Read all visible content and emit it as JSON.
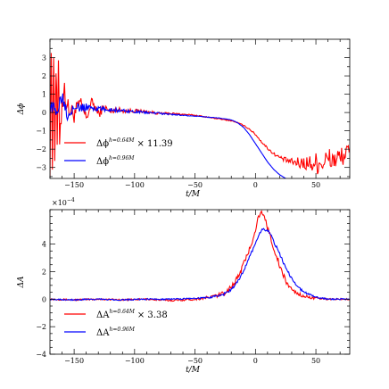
{
  "chart_data": [
    {
      "type": "line",
      "panel": "top",
      "ylabel": "Δϕ",
      "xlabel": "t/M",
      "xlim": [
        -170,
        78
      ],
      "ylim": [
        -3.6,
        4.0
      ],
      "xticks": [
        -150,
        -100,
        -50,
        0,
        50
      ],
      "xtick_labels": [
        "−150",
        "−100",
        "−50",
        "0",
        "50"
      ],
      "yticks": [
        -3,
        -2,
        -1,
        0,
        1,
        2,
        3
      ],
      "ytick_labels": [
        "−3",
        "−2",
        "−1",
        "0",
        "1",
        "2",
        "3"
      ],
      "legend_position": "lower-left",
      "series": [
        {
          "name_main": "Δϕ",
          "name_sup": "h=0.64M",
          "name_suffix": "× 11.39",
          "color": "#ff0000",
          "x": [
            -170,
            -169,
            -168,
            -167,
            -166,
            -165,
            -164,
            -163,
            -162,
            -160,
            -158,
            -155,
            -150,
            -145,
            -140,
            -135,
            -130,
            -125,
            -120,
            -115,
            -110,
            -100,
            -90,
            -80,
            -70,
            -60,
            -50,
            -40,
            -30,
            -20,
            -15,
            -10,
            -5,
            0,
            5,
            10,
            15,
            20,
            25,
            30,
            35,
            40,
            45,
            50,
            55,
            60,
            65,
            70,
            75,
            78
          ],
          "y": [
            -2.6,
            3.4,
            -3.0,
            3.8,
            -2.2,
            2.6,
            -1.6,
            2.0,
            -1.2,
            0.6,
            1.2,
            0.2,
            -0.1,
            0.5,
            -0.3,
            0.6,
            -0.1,
            0.3,
            0.0,
            0.2,
            0.1,
            0.1,
            0.05,
            -0.05,
            -0.05,
            -0.1,
            -0.15,
            -0.25,
            -0.35,
            -0.45,
            -0.55,
            -0.7,
            -0.9,
            -1.2,
            -1.6,
            -1.95,
            -2.25,
            -2.45,
            -2.6,
            -2.7,
            -2.75,
            -2.75,
            -2.8,
            -2.75,
            -2.7,
            -2.6,
            -2.55,
            -2.5,
            -2.2,
            -2.3
          ],
          "noise": [
            0.9,
            0.9,
            0.9,
            0.9,
            0.9,
            0.9,
            0.9,
            0.9,
            0.9,
            0.8,
            0.7,
            0.6,
            0.5,
            0.4,
            0.35,
            0.3,
            0.25,
            0.2,
            0.18,
            0.15,
            0.12,
            0.1,
            0.08,
            0.06,
            0.05,
            0.04,
            0.03,
            0.03,
            0.03,
            0.03,
            0.03,
            0.03,
            0.04,
            0.05,
            0.06,
            0.07,
            0.08,
            0.1,
            0.15,
            0.2,
            0.3,
            0.4,
            0.5,
            0.6,
            0.7,
            0.7,
            0.7,
            0.6,
            0.5,
            0.5
          ]
        },
        {
          "name_main": "Δϕ",
          "name_sup": "h=0.96M",
          "name_suffix": "",
          "color": "#0000ff",
          "x": [
            -170,
            -165,
            -160,
            -155,
            -150,
            -145,
            -140,
            -130,
            -120,
            -110,
            -100,
            -90,
            -80,
            -70,
            -60,
            -50,
            -40,
            -30,
            -20,
            -15,
            -10,
            -5,
            0,
            5,
            10,
            15,
            20,
            25,
            30
          ],
          "y": [
            0.4,
            0.0,
            1.0,
            -0.2,
            0.5,
            0.2,
            0.3,
            0.2,
            0.15,
            0.1,
            0.05,
            0.0,
            -0.05,
            -0.1,
            -0.15,
            -0.2,
            -0.25,
            -0.3,
            -0.4,
            -0.55,
            -0.8,
            -1.2,
            -1.7,
            -2.2,
            -2.7,
            -3.1,
            -3.4,
            -3.6,
            -3.8
          ],
          "noise": [
            0.4,
            0.35,
            0.4,
            0.35,
            0.3,
            0.25,
            0.2,
            0.15,
            0.12,
            0.1,
            0.08,
            0.06,
            0.05,
            0.04,
            0.03,
            0.02,
            0.02,
            0.01,
            0.01,
            0.01,
            0.01,
            0.0,
            0.0,
            0.0,
            0.0,
            0.0,
            0.0,
            0.0,
            0.0
          ]
        }
      ]
    },
    {
      "type": "line",
      "panel": "bottom",
      "ylabel": "ΔA",
      "xlabel": "t/M",
      "scale_label": "×10",
      "scale_exp": "−4",
      "xlim": [
        -170,
        78
      ],
      "ylim": [
        -4.0,
        6.5
      ],
      "xticks": [
        -150,
        -100,
        -50,
        0,
        50
      ],
      "xtick_labels": [
        "−150",
        "−100",
        "−50",
        "0",
        "50"
      ],
      "yticks": [
        -4,
        -2,
        0,
        2,
        4
      ],
      "ytick_labels": [
        "−4",
        "−2",
        "0",
        "2",
        "4"
      ],
      "legend_position": "lower-left",
      "series": [
        {
          "name_main": "ΔA",
          "name_sup": "h=0.64M",
          "name_suffix": "× 3.38",
          "color": "#ff0000",
          "x": [
            -170,
            -150,
            -130,
            -110,
            -90,
            -70,
            -50,
            -40,
            -30,
            -25,
            -20,
            -15,
            -10,
            -5,
            0,
            2,
            5,
            8,
            10,
            15,
            20,
            25,
            30,
            35,
            40,
            50,
            60,
            70,
            78
          ],
          "y": [
            0.0,
            -0.05,
            0.0,
            -0.05,
            0.0,
            -0.1,
            0.0,
            0.1,
            0.3,
            0.5,
            0.9,
            1.5,
            2.5,
            3.6,
            5.0,
            5.9,
            6.3,
            5.8,
            5.2,
            3.8,
            2.4,
            1.3,
            0.7,
            0.4,
            0.2,
            0.05,
            0.0,
            0.0,
            0.0
          ],
          "noise": [
            0.06,
            0.06,
            0.06,
            0.06,
            0.06,
            0.06,
            0.08,
            0.1,
            0.15,
            0.2,
            0.2,
            0.2,
            0.2,
            0.2,
            0.15,
            0.1,
            0.1,
            0.15,
            0.2,
            0.25,
            0.25,
            0.2,
            0.15,
            0.12,
            0.1,
            0.08,
            0.06,
            0.05,
            0.05
          ]
        },
        {
          "name_main": "ΔA",
          "name_sup": "h=0.96M",
          "name_suffix": "",
          "color": "#0000ff",
          "x": [
            -170,
            -150,
            -130,
            -110,
            -90,
            -70,
            -50,
            -40,
            -30,
            -25,
            -20,
            -15,
            -10,
            -5,
            0,
            3,
            6,
            9,
            12,
            15,
            20,
            25,
            30,
            35,
            40,
            50,
            60,
            70,
            78
          ],
          "y": [
            0.0,
            -0.05,
            0.0,
            -0.05,
            0.0,
            0.0,
            0.05,
            0.1,
            0.25,
            0.4,
            0.7,
            1.2,
            2.0,
            3.0,
            4.1,
            4.7,
            5.1,
            5.0,
            4.8,
            4.2,
            3.3,
            2.3,
            1.5,
            0.9,
            0.5,
            0.15,
            0.0,
            0.0,
            0.0
          ],
          "noise": [
            0.05,
            0.05,
            0.05,
            0.05,
            0.05,
            0.05,
            0.05,
            0.06,
            0.08,
            0.1,
            0.12,
            0.12,
            0.12,
            0.12,
            0.1,
            0.08,
            0.08,
            0.1,
            0.12,
            0.12,
            0.12,
            0.12,
            0.1,
            0.08,
            0.08,
            0.06,
            0.05,
            0.05,
            0.05
          ]
        }
      ]
    }
  ]
}
